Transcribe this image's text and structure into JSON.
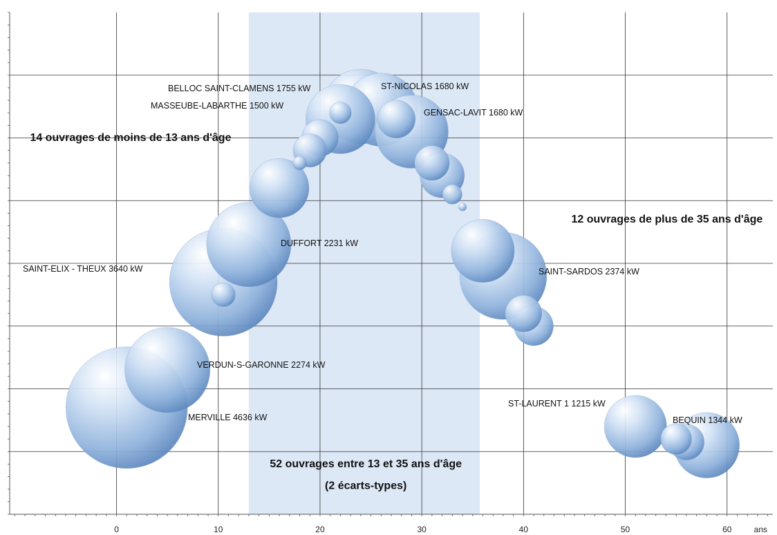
{
  "chart_data": {
    "type": "scatter",
    "subtype": "bubble",
    "x_unit": "ans",
    "x_ticks": [
      0,
      10,
      20,
      30,
      40,
      50,
      60
    ],
    "xlim": [
      -10.5,
      64.5
    ],
    "ylim": [
      0,
      8
    ],
    "grid": true,
    "highlight_band": {
      "x_from": 13,
      "x_to": 35.7,
      "color": "#dde8f6"
    },
    "colors": {
      "bubble_light": "#ffffff",
      "bubble_mid": "#bcd3ee",
      "bubble_dark": "#5b86bd",
      "grid": "#333333"
    },
    "points": [
      {
        "x": 1,
        "y": 1.7,
        "size": 4636,
        "label": "MERVILLE 4636 kW"
      },
      {
        "x": 5,
        "y": 2.3,
        "size": 2274,
        "label": "VERDUN-S-GARONNE 2274 kW"
      },
      {
        "x": 10.5,
        "y": 3.7,
        "size": 3640,
        "label": "SAINT-ELIX - THEUX 3640 kW"
      },
      {
        "x": 10.5,
        "y": 3.5,
        "size": 180,
        "label": ""
      },
      {
        "x": 13,
        "y": 4.3,
        "size": 2231,
        "label": "DUFFORT 2231 kW"
      },
      {
        "x": 16,
        "y": 5.2,
        "size": 1100,
        "label": ""
      },
      {
        "x": 18,
        "y": 5.6,
        "size": 60,
        "label": ""
      },
      {
        "x": 19,
        "y": 5.8,
        "size": 350,
        "label": ""
      },
      {
        "x": 20,
        "y": 6.0,
        "size": 420,
        "label": ""
      },
      {
        "x": 22,
        "y": 6.3,
        "size": 1500,
        "label": "MASSEUBE-LABARTHE 1500 kW"
      },
      {
        "x": 22,
        "y": 6.4,
        "size": 150,
        "label": ""
      },
      {
        "x": 24,
        "y": 6.5,
        "size": 1755,
        "label": "BELLOC SAINT-CLAMENS 1755 kW"
      },
      {
        "x": 26,
        "y": 6.45,
        "size": 1680,
        "label": "ST-NICOLAS 1680 kW"
      },
      {
        "x": 27.5,
        "y": 6.3,
        "size": 450,
        "label": ""
      },
      {
        "x": 29,
        "y": 6.1,
        "size": 1680,
        "label": "GENSAC-LAVIT 1680 kW"
      },
      {
        "x": 31,
        "y": 5.6,
        "size": 380,
        "label": ""
      },
      {
        "x": 32,
        "y": 5.4,
        "size": 620,
        "label": ""
      },
      {
        "x": 33,
        "y": 5.1,
        "size": 120,
        "label": ""
      },
      {
        "x": 34,
        "y": 4.9,
        "size": 20,
        "label": ""
      },
      {
        "x": 36,
        "y": 4.2,
        "size": 1250,
        "label": ""
      },
      {
        "x": 38,
        "y": 3.8,
        "size": 2374,
        "label": "SAINT-SARDOS 2374 kW"
      },
      {
        "x": 40,
        "y": 3.2,
        "size": 420,
        "label": ""
      },
      {
        "x": 41,
        "y": 3.0,
        "size": 480,
        "label": ""
      },
      {
        "x": 51,
        "y": 1.4,
        "size": 1215,
        "label": "ST-LAURENT 1 1215 kW"
      },
      {
        "x": 55,
        "y": 1.2,
        "size": 300,
        "label": ""
      },
      {
        "x": 56,
        "y": 1.15,
        "size": 400,
        "label": ""
      },
      {
        "x": 58,
        "y": 1.1,
        "size": 1344,
        "label": "BEQUIN 1344 kW"
      }
    ],
    "annotations": [
      {
        "text": "14 ouvrages de moins de 13 ans d'âge",
        "x": -8.5,
        "y": 5.95,
        "anchor": "start"
      },
      {
        "text": "12 ouvrages de plus de 35 ans d'âge",
        "x": 63.5,
        "y": 4.65,
        "anchor": "end"
      },
      {
        "text": "52 ouvrages entre 13 et 35 ans d'âge",
        "x": 24.5,
        "y": 0.75,
        "anchor": "middle"
      },
      {
        "text": "(2 écarts-types)",
        "x": 24.5,
        "y": 0.4,
        "anchor": "middle"
      }
    ]
  }
}
